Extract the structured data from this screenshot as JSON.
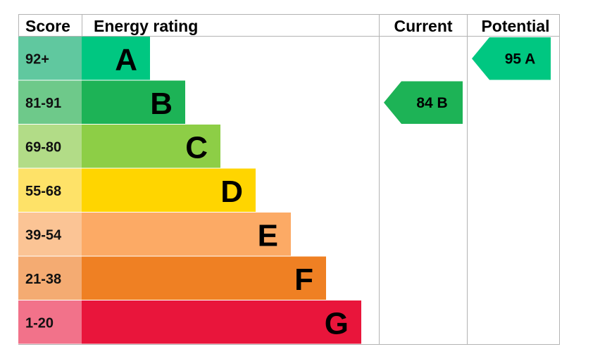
{
  "chart_data": {
    "type": "bar",
    "headers": {
      "score": "Score",
      "rating": "Energy rating",
      "current": "Current",
      "potential": "Potential"
    },
    "bands": [
      {
        "letter": "A",
        "range": "92+",
        "score_color": "#60c89f",
        "bar_color": "#00c781",
        "width_rank": 1
      },
      {
        "letter": "B",
        "range": "81-91",
        "score_color": "#6ec98a",
        "bar_color": "#1db356",
        "width_rank": 2
      },
      {
        "letter": "C",
        "range": "69-80",
        "score_color": "#b2dc87",
        "bar_color": "#8dce46",
        "width_rank": 3
      },
      {
        "letter": "D",
        "range": "55-68",
        "score_color": "#fee268",
        "bar_color": "#ffd500",
        "width_rank": 4
      },
      {
        "letter": "E",
        "range": "39-54",
        "score_color": "#fbc495",
        "bar_color": "#fcaa65",
        "width_rank": 5
      },
      {
        "letter": "F",
        "range": "21-38",
        "score_color": "#f4ab72",
        "bar_color": "#ef8023",
        "width_rank": 6
      },
      {
        "letter": "G",
        "range": "1-20",
        "score_color": "#f2728a",
        "bar_color": "#e9153b",
        "width_rank": 7
      }
    ],
    "current": {
      "value": 84,
      "letter": "B",
      "label": "84  B",
      "color": "#1db356"
    },
    "potential": {
      "value": 95,
      "letter": "A",
      "label": "95  A",
      "color": "#00c781"
    }
  }
}
